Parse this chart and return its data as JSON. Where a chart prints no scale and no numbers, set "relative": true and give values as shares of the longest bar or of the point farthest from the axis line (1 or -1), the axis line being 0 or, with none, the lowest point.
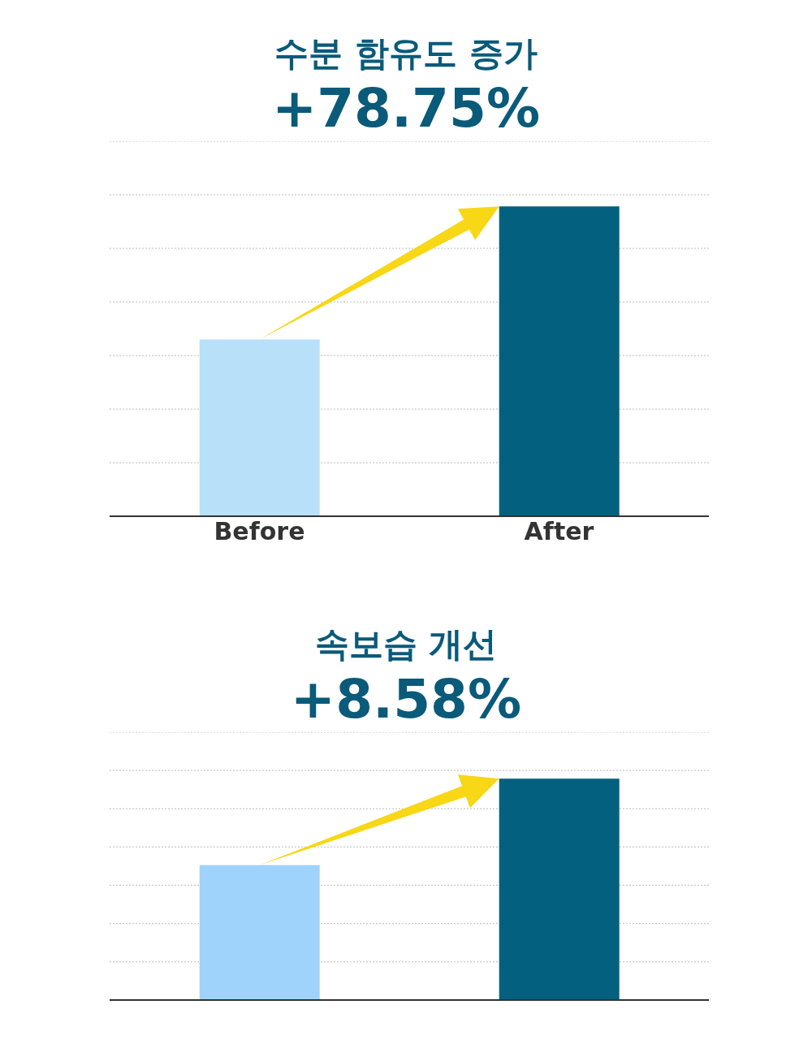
{
  "chart_data": [
    {
      "type": "bar",
      "title": "수분 함유도 증가",
      "subtitle": "+78.75%",
      "categories": [
        "Before",
        "After"
      ],
      "values": [
        0.57,
        1
      ],
      "colors": [
        "#b9e0f9",
        "#04607f"
      ],
      "relative": true,
      "grid": true
    },
    {
      "type": "bar",
      "title": "속보습 개선",
      "subtitle": "+8.58%",
      "categories": [
        null,
        null
      ],
      "values": [
        0.61,
        1
      ],
      "colors": [
        "#9fd3fb",
        "#04607f"
      ],
      "relative": true,
      "grid": true
    }
  ]
}
